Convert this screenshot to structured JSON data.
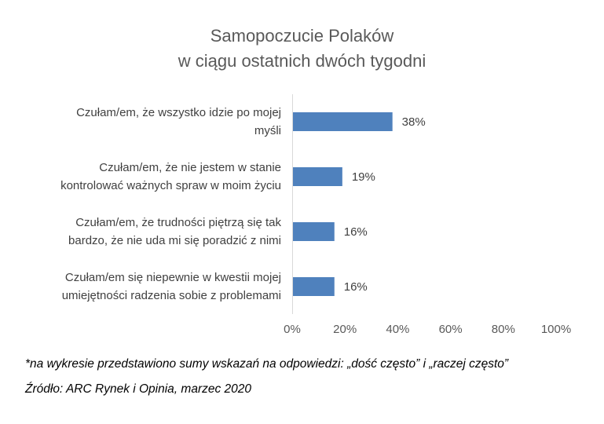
{
  "chart_data": {
    "type": "bar",
    "orientation": "horizontal",
    "title_lines": [
      "Samopoczucie Polaków",
      "w ciągu ostatnich dwóch tygodni"
    ],
    "categories": [
      [
        "Czułam/em, że wszystko idzie po mojej",
        "myśli"
      ],
      [
        "Czułam/em, że nie jestem w stanie",
        "kontrolować ważnych spraw w moim życiu"
      ],
      [
        "Czułam/em, że trudności piętrzą się tak",
        "bardzo, że nie uda mi się poradzić z nimi"
      ],
      [
        "Czułam/em się niepewnie  w kwestii mojej",
        "umiejętności radzenia sobie z problemami"
      ]
    ],
    "values": [
      38,
      19,
      16,
      16
    ],
    "data_labels": [
      "38%",
      "19%",
      "16%",
      "16%"
    ],
    "xlim": [
      0,
      100
    ],
    "xticks": [
      "0%",
      "20%",
      "40%",
      "60%",
      "80%",
      "100%"
    ],
    "bar_color": "#4f81bd",
    "grid": false,
    "legend": "none"
  },
  "footnotes": {
    "note": "*na wykresie przedstawiono sumy wskazań na odpowiedzi: „dość często” i „raczej często”",
    "source": "Źródło: ARC Rynek i Opinia, marzec 2020"
  }
}
